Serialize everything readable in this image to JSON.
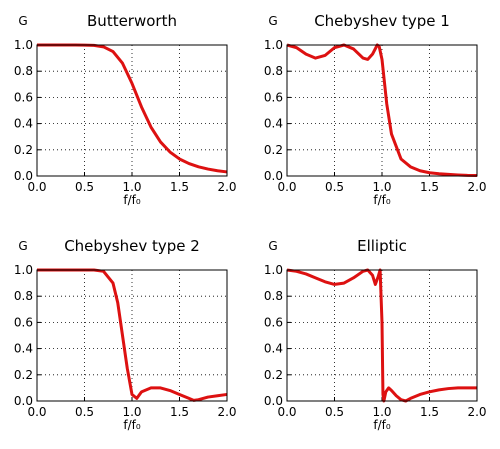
{
  "chart_data": [
    {
      "type": "line",
      "title": "Butterworth",
      "ylabel": "G",
      "xlabel": "f/f₀",
      "color": "#dd1111",
      "grid": true,
      "xlim": [
        0,
        2
      ],
      "ylim": [
        0,
        1
      ],
      "xticks": [
        {
          "value": 0,
          "label": "0.0"
        },
        {
          "value": 0.5,
          "label": "0.5"
        },
        {
          "value": 1,
          "label": "1.0"
        },
        {
          "value": 1.5,
          "label": "1.5"
        },
        {
          "value": 2,
          "label": "2.0"
        }
      ],
      "yticks": [
        {
          "value": 0,
          "label": "0.0"
        },
        {
          "value": 0.2,
          "label": "0.2"
        },
        {
          "value": 0.4,
          "label": "0.4"
        },
        {
          "value": 0.6,
          "label": "0.6"
        },
        {
          "value": 0.8,
          "label": "0.8"
        },
        {
          "value": 1,
          "label": "1.0"
        }
      ],
      "x": [
        0,
        0.1,
        0.2,
        0.3,
        0.4,
        0.5,
        0.6,
        0.7,
        0.8,
        0.9,
        1.0,
        1.1,
        1.2,
        1.3,
        1.4,
        1.5,
        1.6,
        1.7,
        1.8,
        1.9,
        2.0
      ],
      "values": [
        1,
        1,
        1,
        1,
        1,
        0.9995,
        0.997,
        0.986,
        0.95,
        0.861,
        0.707,
        0.527,
        0.373,
        0.26,
        0.183,
        0.13,
        0.095,
        0.07,
        0.053,
        0.04,
        0.031
      ]
    },
    {
      "type": "line",
      "title": "Chebyshev type 1",
      "ylabel": "G",
      "xlabel": "f/f₀",
      "color": "#dd1111",
      "grid": true,
      "xlim": [
        0,
        2
      ],
      "ylim": [
        0,
        1
      ],
      "xticks": [
        {
          "value": 0,
          "label": "0.0"
        },
        {
          "value": 0.5,
          "label": "0.5"
        },
        {
          "value": 1,
          "label": "1.0"
        },
        {
          "value": 1.5,
          "label": "1.5"
        },
        {
          "value": 2,
          "label": "2.0"
        }
      ],
      "yticks": [
        {
          "value": 0,
          "label": "0.0"
        },
        {
          "value": 0.2,
          "label": "0.2"
        },
        {
          "value": 0.4,
          "label": "0.4"
        },
        {
          "value": 0.6,
          "label": "0.6"
        },
        {
          "value": 0.8,
          "label": "0.8"
        },
        {
          "value": 1,
          "label": "1.0"
        }
      ],
      "x": [
        0,
        0.1,
        0.2,
        0.3,
        0.4,
        0.5,
        0.6,
        0.7,
        0.8,
        0.85,
        0.9,
        0.95,
        0.97,
        1.0,
        1.05,
        1.1,
        1.2,
        1.3,
        1.4,
        1.5,
        1.6,
        1.7,
        1.8,
        1.9,
        2.0
      ],
      "values": [
        1.0,
        0.98,
        0.93,
        0.9,
        0.92,
        0.98,
        1.0,
        0.97,
        0.9,
        0.89,
        0.93,
        1.0,
        0.99,
        0.89,
        0.55,
        0.32,
        0.13,
        0.07,
        0.04,
        0.025,
        0.017,
        0.012,
        0.008,
        0.005,
        0.004
      ]
    },
    {
      "type": "line",
      "title": "Chebyshev type 2",
      "ylabel": "G",
      "xlabel": "f/f₀",
      "color": "#dd1111",
      "grid": true,
      "xlim": [
        0,
        2
      ],
      "ylim": [
        0,
        1
      ],
      "xticks": [
        {
          "value": 0,
          "label": "0.0"
        },
        {
          "value": 0.5,
          "label": "0.5"
        },
        {
          "value": 1,
          "label": "1.0"
        },
        {
          "value": 1.5,
          "label": "1.5"
        },
        {
          "value": 2,
          "label": "2.0"
        }
      ],
      "yticks": [
        {
          "value": 0,
          "label": "0.0"
        },
        {
          "value": 0.2,
          "label": "0.2"
        },
        {
          "value": 0.4,
          "label": "0.4"
        },
        {
          "value": 0.6,
          "label": "0.6"
        },
        {
          "value": 0.8,
          "label": "0.8"
        },
        {
          "value": 1,
          "label": "1.0"
        }
      ],
      "x": [
        0,
        0.2,
        0.4,
        0.6,
        0.7,
        0.8,
        0.85,
        0.9,
        0.95,
        1.0,
        1.05,
        1.1,
        1.2,
        1.3,
        1.4,
        1.5,
        1.6,
        1.65,
        1.7,
        1.8,
        1.9,
        2.0
      ],
      "values": [
        1,
        1,
        1,
        1,
        0.99,
        0.9,
        0.75,
        0.5,
        0.25,
        0.05,
        0.02,
        0.07,
        0.1,
        0.1,
        0.08,
        0.05,
        0.02,
        0.005,
        0.01,
        0.03,
        0.04,
        0.05
      ]
    },
    {
      "type": "line",
      "title": "Elliptic",
      "ylabel": "G",
      "xlabel": "f/f₀",
      "color": "#dd1111",
      "grid": true,
      "xlim": [
        0,
        2
      ],
      "ylim": [
        0,
        1
      ],
      "xticks": [
        {
          "value": 0,
          "label": "0.0"
        },
        {
          "value": 0.5,
          "label": "0.5"
        },
        {
          "value": 1,
          "label": "1.0"
        },
        {
          "value": 1.5,
          "label": "1.5"
        },
        {
          "value": 2,
          "label": "2.0"
        }
      ],
      "yticks": [
        {
          "value": 0,
          "label": "0.0"
        },
        {
          "value": 0.2,
          "label": "0.2"
        },
        {
          "value": 0.4,
          "label": "0.4"
        },
        {
          "value": 0.6,
          "label": "0.6"
        },
        {
          "value": 0.8,
          "label": "0.8"
        },
        {
          "value": 1,
          "label": "1.0"
        }
      ],
      "x": [
        0,
        0.1,
        0.2,
        0.3,
        0.4,
        0.5,
        0.6,
        0.7,
        0.8,
        0.85,
        0.9,
        0.93,
        0.96,
        0.98,
        1.0,
        1.01,
        1.02,
        1.04,
        1.07,
        1.1,
        1.15,
        1.2,
        1.25,
        1.3,
        1.4,
        1.5,
        1.6,
        1.7,
        1.8,
        1.9,
        2.0
      ],
      "values": [
        1.0,
        0.99,
        0.97,
        0.94,
        0.91,
        0.89,
        0.9,
        0.94,
        0.99,
        1.0,
        0.96,
        0.89,
        0.95,
        1.0,
        0.6,
        0.05,
        0.0,
        0.07,
        0.1,
        0.08,
        0.04,
        0.01,
        0.0,
        0.02,
        0.05,
        0.07,
        0.085,
        0.095,
        0.1,
        0.1,
        0.1
      ]
    }
  ]
}
